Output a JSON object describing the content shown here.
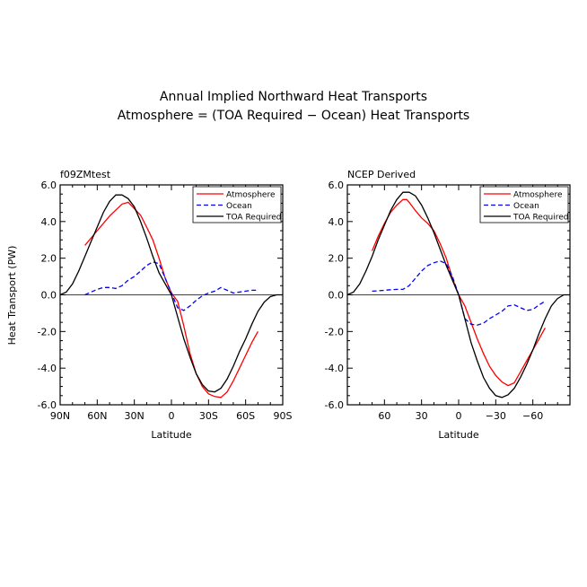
{
  "figure": {
    "title_line1": "Annual Implied Northward Heat Transports",
    "title_line2": "Atmosphere = (TOA Required − Ocean) Heat Transports",
    "ylabel": "Heat Transport (PW)",
    "xlabel": "Latitude"
  },
  "chart_data": [
    {
      "type": "line",
      "panel_label": "f09ZMtest",
      "xlabel": "Latitude",
      "ylabel": "Heat Transport (PW)",
      "xlim": [
        90,
        -90
      ],
      "ylim": [
        -6,
        6
      ],
      "x_ticks": [
        90,
        60,
        30,
        0,
        -30,
        -60,
        -90
      ],
      "x_tick_labels": [
        "90N",
        "60N",
        "30N",
        "0",
        "30S",
        "60S",
        "90S"
      ],
      "y_ticks": [
        6,
        4,
        2,
        0,
        -2,
        -4,
        -6
      ],
      "y_tick_labels": [
        "6.0",
        "4.0",
        "2.0",
        "0.0",
        "-2.0",
        "-4.0",
        "-6.0"
      ],
      "legend_position": "top-right",
      "series": [
        {
          "name": "Atmosphere",
          "color": "#ff0000",
          "dash": "solid",
          "x": [
            70,
            60,
            50,
            40,
            35,
            30,
            25,
            20,
            15,
            10,
            5,
            0,
            -5,
            -10,
            -15,
            -20,
            -25,
            -30,
            -35,
            -40,
            -45,
            -50,
            -55,
            -60,
            -65,
            -70
          ],
          "y": [
            2.7,
            3.5,
            4.3,
            4.95,
            5.05,
            4.7,
            4.35,
            3.7,
            3.0,
            2.0,
            0.9,
            0.1,
            -0.35,
            -1.7,
            -3.2,
            -4.3,
            -5.0,
            -5.4,
            -5.55,
            -5.6,
            -5.3,
            -4.7,
            -4.0,
            -3.3,
            -2.6,
            -2.0
          ]
        },
        {
          "name": "Ocean",
          "color": "#0000ff",
          "dash": "dashed",
          "x": [
            70,
            65,
            60,
            55,
            50,
            45,
            40,
            35,
            30,
            25,
            20,
            15,
            10,
            5,
            0,
            -5,
            -10,
            -15,
            -20,
            -25,
            -30,
            -35,
            -40,
            -45,
            -50,
            -55,
            -60,
            -65,
            -70
          ],
          "y": [
            0.0,
            0.15,
            0.3,
            0.4,
            0.4,
            0.35,
            0.5,
            0.8,
            1.0,
            1.3,
            1.6,
            1.8,
            1.7,
            0.9,
            0.1,
            -0.7,
            -0.85,
            -0.6,
            -0.3,
            -0.05,
            0.1,
            0.2,
            0.4,
            0.25,
            0.1,
            0.15,
            0.2,
            0.25,
            0.25
          ]
        },
        {
          "name": "TOA Required",
          "color": "#000000",
          "dash": "solid",
          "x": [
            90,
            85,
            80,
            75,
            70,
            65,
            60,
            55,
            50,
            45,
            40,
            35,
            30,
            25,
            20,
            15,
            10,
            5,
            0,
            -5,
            -10,
            -15,
            -20,
            -25,
            -30,
            -35,
            -40,
            -45,
            -50,
            -55,
            -60,
            -65,
            -70,
            -75,
            -80,
            -85,
            -90
          ],
          "y": [
            0.0,
            0.15,
            0.6,
            1.3,
            2.1,
            2.9,
            3.7,
            4.5,
            5.1,
            5.45,
            5.45,
            5.25,
            4.8,
            4.0,
            3.1,
            2.1,
            1.2,
            0.6,
            0.0,
            -1.2,
            -2.4,
            -3.4,
            -4.3,
            -4.9,
            -5.25,
            -5.3,
            -5.1,
            -4.6,
            -3.9,
            -3.1,
            -2.4,
            -1.6,
            -0.9,
            -0.4,
            -0.1,
            0.0,
            0.0
          ]
        }
      ]
    },
    {
      "type": "line",
      "panel_label": "NCEP Derived",
      "xlabel": "Latitude",
      "xlim": [
        90,
        -90
      ],
      "ylim": [
        -6,
        6
      ],
      "x_ticks": [
        60,
        30,
        0,
        -30,
        -60
      ],
      "x_tick_labels": [
        "60",
        "30",
        "0",
        "−30",
        "−60"
      ],
      "y_ticks": [
        6,
        4,
        2,
        0,
        -2,
        -4,
        -6
      ],
      "y_tick_labels": [
        "6.0",
        "4.0",
        "2.0",
        "0.0",
        "-2.0",
        "-4.0",
        "-6.0"
      ],
      "legend_position": "top-right",
      "series": [
        {
          "name": "Atmosphere",
          "color": "#ff0000",
          "dash": "solid",
          "x": [
            70,
            65,
            60,
            55,
            50,
            45,
            42,
            40,
            35,
            30,
            25,
            20,
            15,
            10,
            5,
            0,
            -5,
            -10,
            -15,
            -20,
            -25,
            -30,
            -35,
            -40,
            -45,
            -50,
            -55,
            -60,
            -65,
            -70
          ],
          "y": [
            2.4,
            3.2,
            3.9,
            4.5,
            4.9,
            5.2,
            5.2,
            5.05,
            4.6,
            4.2,
            3.9,
            3.5,
            2.8,
            2.0,
            0.9,
            0.0,
            -0.6,
            -1.5,
            -2.4,
            -3.2,
            -3.9,
            -4.4,
            -4.75,
            -4.95,
            -4.8,
            -4.2,
            -3.6,
            -3.0,
            -2.4,
            -1.8
          ]
        },
        {
          "name": "Ocean",
          "color": "#0000ff",
          "dash": "dashed",
          "x": [
            70,
            65,
            60,
            55,
            50,
            45,
            40,
            35,
            30,
            25,
            20,
            15,
            10,
            5,
            0,
            -5,
            -10,
            -15,
            -20,
            -25,
            -30,
            -35,
            -40,
            -45,
            -50,
            -55,
            -60,
            -65,
            -70
          ],
          "y": [
            0.2,
            0.22,
            0.25,
            0.28,
            0.3,
            0.3,
            0.5,
            0.9,
            1.3,
            1.6,
            1.75,
            1.85,
            1.7,
            1.0,
            0.0,
            -1.3,
            -1.6,
            -1.65,
            -1.55,
            -1.3,
            -1.1,
            -0.9,
            -0.6,
            -0.55,
            -0.7,
            -0.85,
            -0.8,
            -0.55,
            -0.35
          ]
        },
        {
          "name": "TOA Required",
          "color": "#000000",
          "dash": "solid",
          "x": [
            90,
            85,
            80,
            75,
            70,
            65,
            60,
            55,
            50,
            45,
            40,
            35,
            30,
            25,
            20,
            15,
            10,
            5,
            0,
            -5,
            -10,
            -15,
            -20,
            -25,
            -30,
            -35,
            -40,
            -45,
            -50,
            -55,
            -60,
            -65,
            -70,
            -75,
            -80,
            -85,
            -90
          ],
          "y": [
            0.0,
            0.15,
            0.6,
            1.3,
            2.1,
            3.0,
            3.8,
            4.6,
            5.2,
            5.6,
            5.6,
            5.4,
            4.9,
            4.2,
            3.4,
            2.5,
            1.6,
            0.8,
            0.0,
            -1.3,
            -2.6,
            -3.6,
            -4.5,
            -5.1,
            -5.5,
            -5.6,
            -5.45,
            -5.1,
            -4.5,
            -3.8,
            -3.0,
            -2.1,
            -1.3,
            -0.6,
            -0.2,
            0.0,
            0.0
          ]
        }
      ]
    }
  ]
}
